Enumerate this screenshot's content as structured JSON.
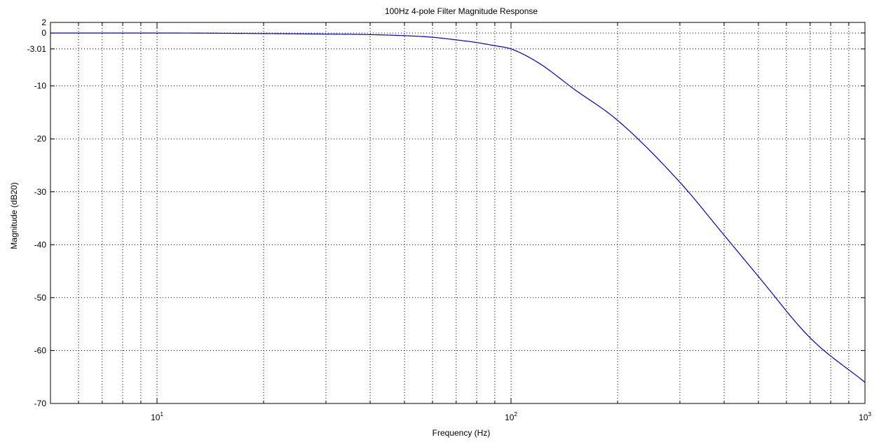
{
  "chart_data": {
    "type": "line",
    "title": "100Hz 4-pole Filter Magnitude Response",
    "xlabel": "Frequency (Hz)",
    "ylabel": "Magnitude (dB20)",
    "xscale": "log",
    "xlim": [
      5,
      1000
    ],
    "ylim": [
      -70,
      2
    ],
    "grid": true,
    "line_color": "#0000cc",
    "grid_color": "#000000",
    "axis_color": "#000000",
    "ytick_values": [
      2,
      0,
      -3.01,
      -10,
      -20,
      -30,
      -40,
      -50,
      -60,
      -70
    ],
    "ytick_labels": [
      "2",
      "0",
      "-3.01",
      "-10",
      "-20",
      "-30",
      "-40",
      "-50",
      "-60",
      "-70"
    ],
    "xtick_values": [
      10,
      100,
      1000
    ],
    "xtick_labels": [
      {
        "base": "10",
        "exp": "1"
      },
      {
        "base": "10",
        "exp": "2"
      },
      {
        "base": "10",
        "exp": "3"
      }
    ],
    "series": [
      {
        "x": [
          5,
          10,
          20,
          30,
          40,
          50,
          60,
          70,
          80,
          90,
          100,
          120,
          150,
          200,
          300,
          400,
          500,
          700,
          1000
        ],
        "y": [
          0,
          0,
          -0.1,
          -0.2,
          -0.3,
          -0.5,
          -0.8,
          -1.3,
          -1.8,
          -2.4,
          -3.01,
          -5.7,
          -10.5,
          -16.5,
          -28.2,
          -38.2,
          -46.0,
          -57.6,
          -66.0
        ]
      }
    ]
  }
}
